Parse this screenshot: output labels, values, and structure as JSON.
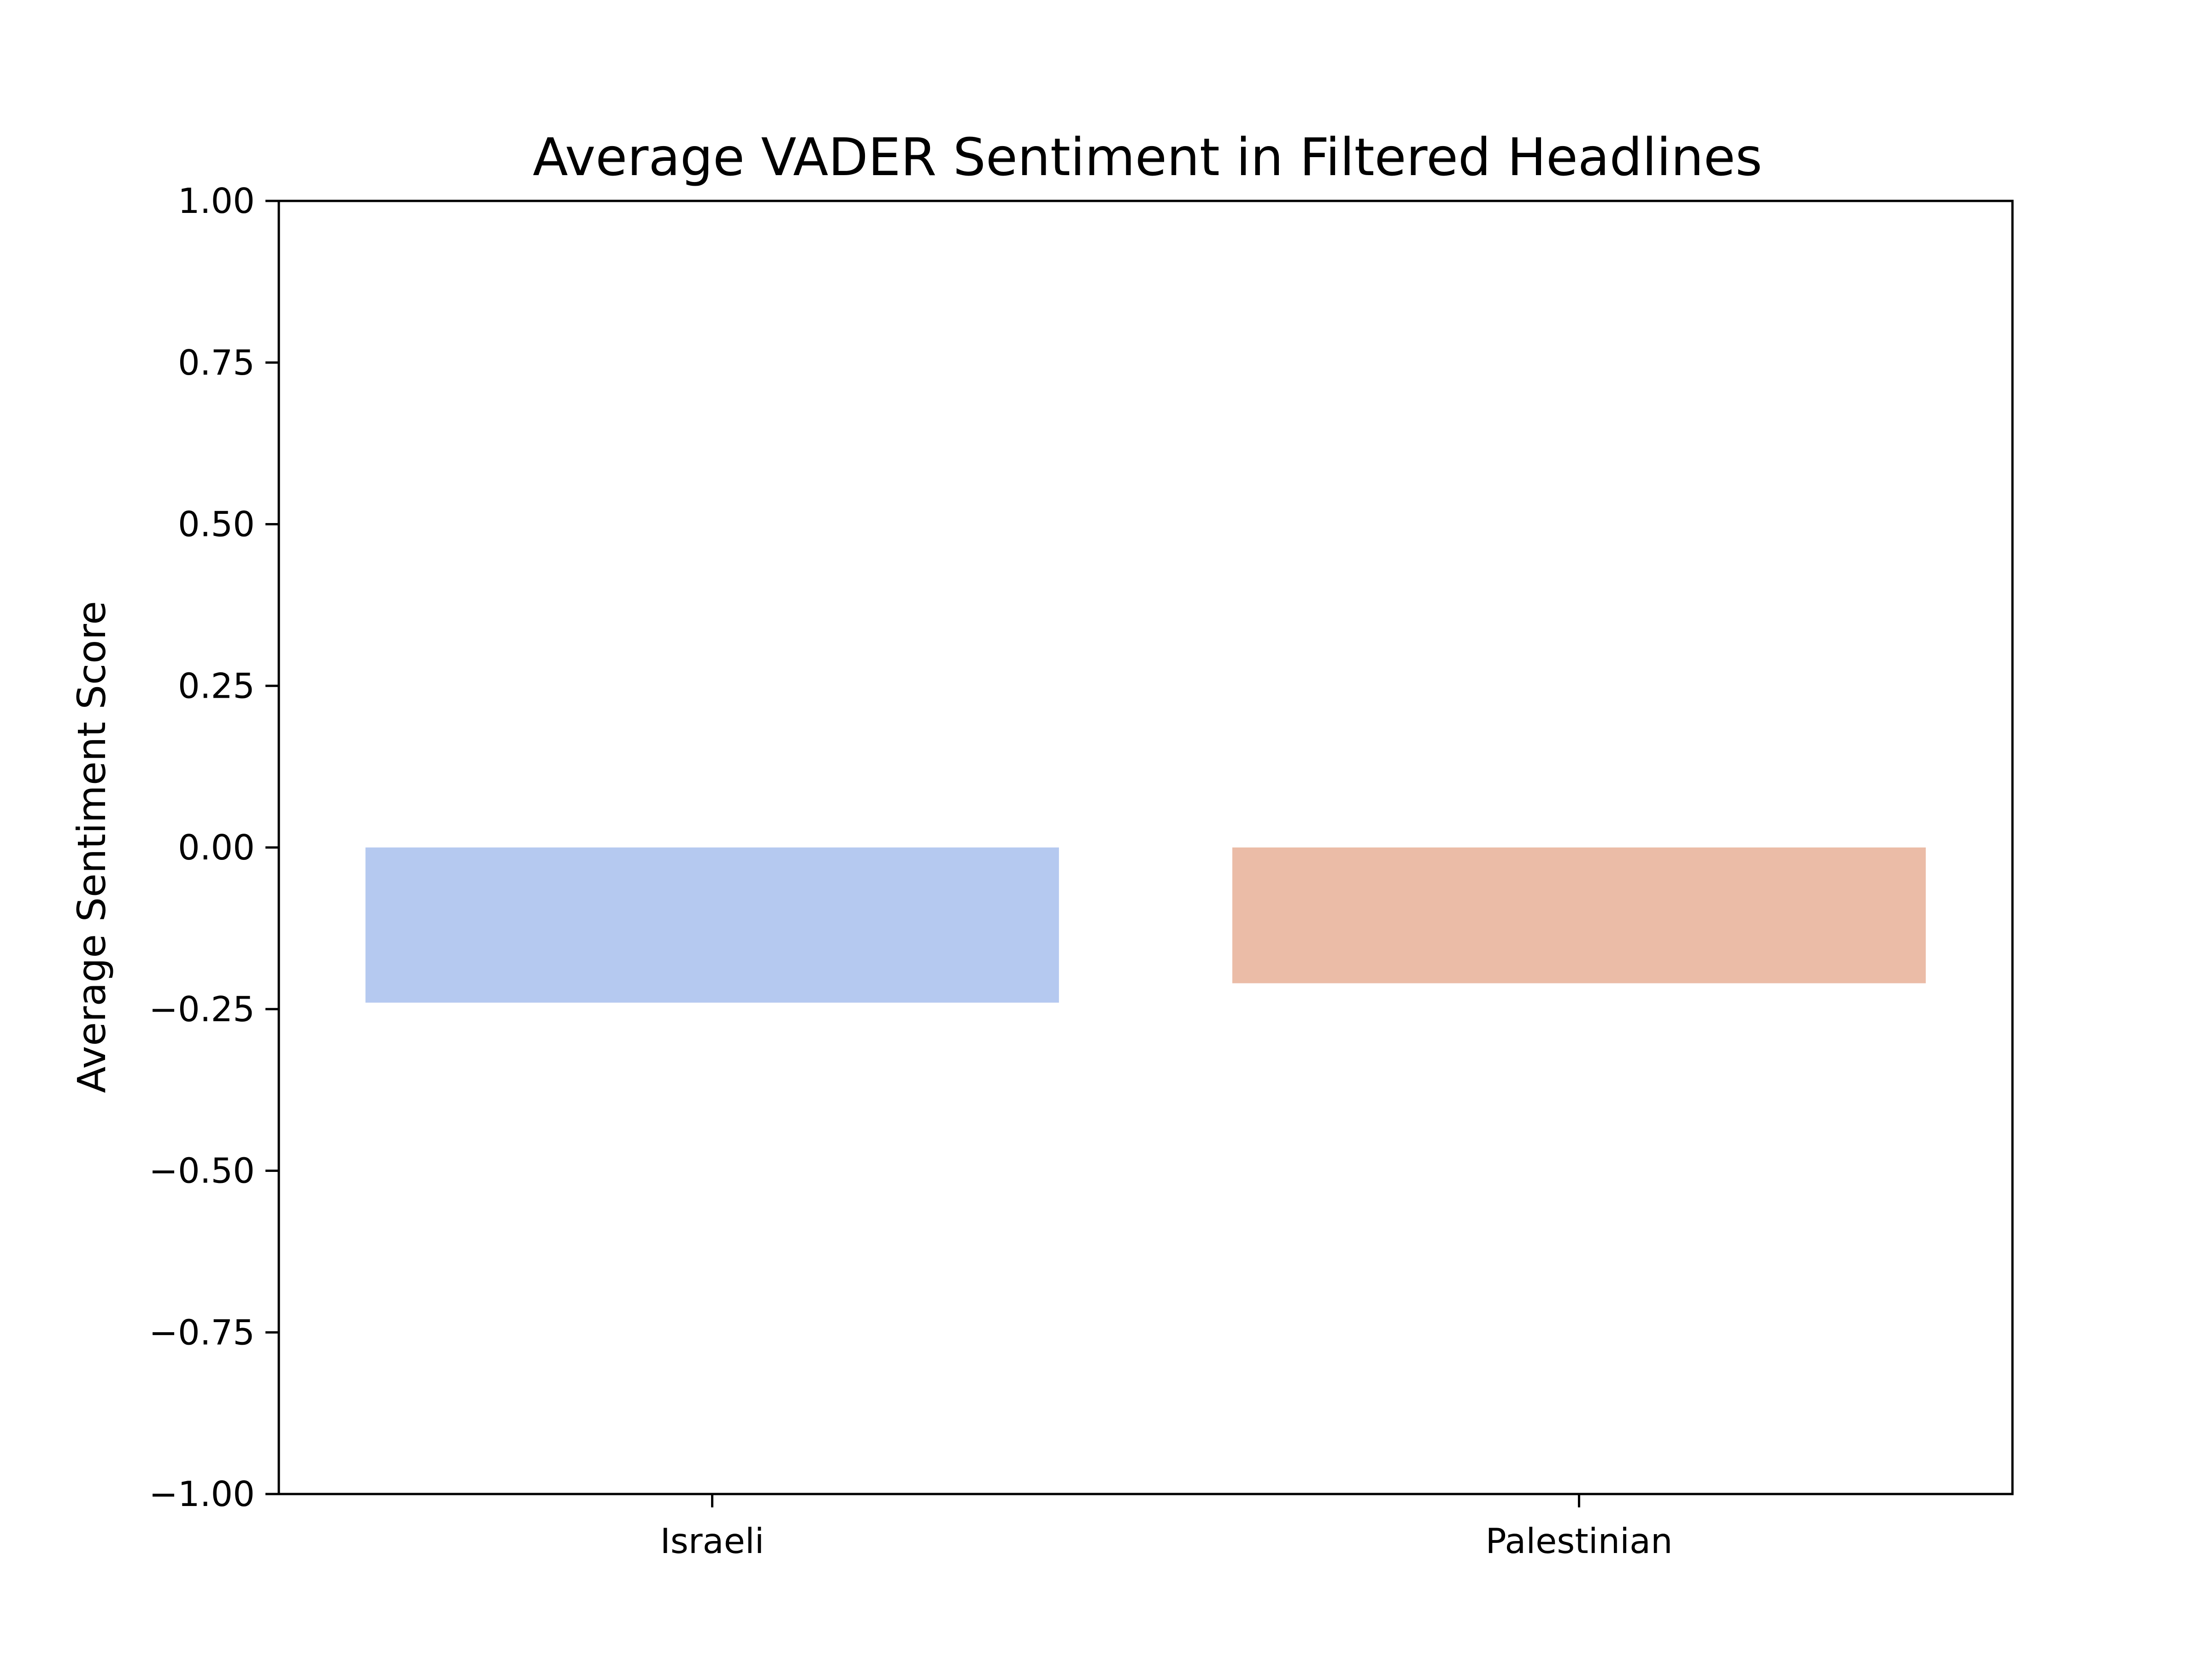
{
  "chart_data": {
    "type": "bar",
    "title": "Average VADER Sentiment in Filtered Headlines",
    "xlabel": "",
    "ylabel": "Average Sentiment Score",
    "categories": [
      "Israeli",
      "Palestinian"
    ],
    "values": [
      -0.24,
      -0.21
    ],
    "colors": [
      "#b5c9f0",
      "#ebbca7"
    ],
    "ylim": [
      -1.0,
      1.0
    ],
    "yticks": [
      1.0,
      0.75,
      0.5,
      0.25,
      0.0,
      -0.25,
      -0.5,
      -0.75,
      -1.0
    ],
    "ytick_labels": [
      "1.00",
      "0.75",
      "0.50",
      "0.25",
      "0.00",
      "−0.25",
      "−0.50",
      "−0.75",
      "−1.00"
    ],
    "grid": false,
    "legend": "none"
  }
}
